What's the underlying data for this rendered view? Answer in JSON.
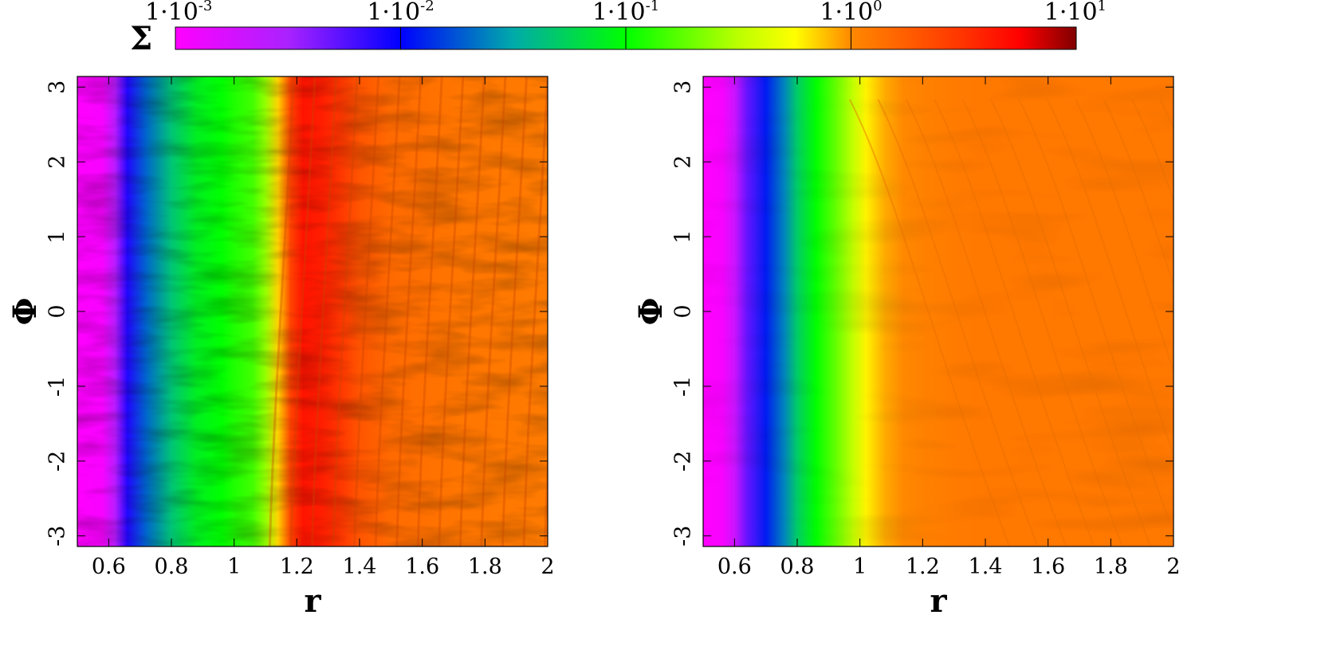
{
  "chart_data": [
    {
      "type": "heatmap",
      "title": "",
      "xlabel": "r",
      "ylabel": "Φ",
      "xlim": [
        0.5,
        2.0
      ],
      "ylim": [
        -3.14159,
        3.14159
      ],
      "x_ticks": [
        "0.6",
        "0.8",
        "1",
        "1.2",
        "1.4",
        "1.6",
        "1.8",
        "2"
      ],
      "x_tick_values": [
        0.6,
        0.8,
        1.0,
        1.2,
        1.4,
        1.6,
        1.8,
        2.0
      ],
      "y_ticks": [
        "-3",
        "-2",
        "-1",
        "0",
        "1",
        "2",
        "3"
      ],
      "y_tick_values": [
        -3,
        -2,
        -1,
        0,
        1,
        2,
        3
      ],
      "colormap_key": "Σ",
      "log_color_scale": true,
      "radial_profile": {
        "r": [
          0.5,
          0.58,
          0.62,
          0.66,
          0.72,
          0.8,
          0.88,
          0.96,
          1.0,
          1.06,
          1.1,
          1.14,
          1.18,
          1.22,
          1.28,
          1.34,
          1.4,
          1.5,
          1.7,
          2.0
        ],
        "sigma": [
          0.001,
          0.0011,
          0.0025,
          0.008,
          0.02,
          0.045,
          0.08,
          0.1,
          0.12,
          0.15,
          0.25,
          0.7,
          2.5,
          4.5,
          4.0,
          3.0,
          2.0,
          1.5,
          1.3,
          1.2
        ]
      }
    },
    {
      "type": "heatmap",
      "title": "",
      "xlabel": "r",
      "ylabel": "Φ",
      "xlim": [
        0.5,
        2.0
      ],
      "ylim": [
        -3.14159,
        3.14159
      ],
      "x_ticks": [
        "0.6",
        "0.8",
        "1",
        "1.2",
        "1.4",
        "1.6",
        "1.8",
        "2"
      ],
      "x_tick_values": [
        0.6,
        0.8,
        1.0,
        1.2,
        1.4,
        1.6,
        1.8,
        2.0
      ],
      "y_ticks": [
        "-3",
        "-2",
        "-1",
        "0",
        "1",
        "2",
        "3"
      ],
      "y_tick_values": [
        -3,
        -2,
        -1,
        0,
        1,
        2,
        3
      ],
      "colormap_key": "Σ",
      "log_color_scale": true,
      "radial_profile": {
        "r": [
          0.5,
          0.56,
          0.6,
          0.64,
          0.7,
          0.76,
          0.8,
          0.86,
          0.92,
          0.98,
          1.02,
          1.08,
          1.14,
          1.2,
          1.3,
          1.4,
          1.6,
          2.0
        ],
        "sigma": [
          0.001,
          0.0011,
          0.002,
          0.005,
          0.012,
          0.025,
          0.05,
          0.1,
          0.18,
          0.35,
          0.6,
          0.85,
          1.0,
          1.1,
          1.2,
          1.25,
          1.25,
          1.25
        ]
      }
    }
  ],
  "colorbar": {
    "symbol": "Σ",
    "range": [
      0.001,
      10
    ],
    "tick_values": [
      0.001,
      0.01,
      0.1,
      1,
      10
    ],
    "tick_labels": [
      {
        "base": "1·10",
        "exp": "-3"
      },
      {
        "base": "1·10",
        "exp": "-2"
      },
      {
        "base": "1·10",
        "exp": "-1"
      },
      {
        "base": "1·10",
        "exp": "0"
      },
      {
        "base": "1·10",
        "exp": "1"
      }
    ],
    "color_stops": [
      {
        "log10": -3.0,
        "color": "#ff00ff"
      },
      {
        "log10": -2.5,
        "color": "#aa22ff"
      },
      {
        "log10": -2.0,
        "color": "#0000ff"
      },
      {
        "log10": -1.5,
        "color": "#00aaaa"
      },
      {
        "log10": -1.0,
        "color": "#00ff00"
      },
      {
        "log10": -0.5,
        "color": "#bbff00"
      },
      {
        "log10": -0.25,
        "color": "#ffff00"
      },
      {
        "log10": 0.0,
        "color": "#ff8800"
      },
      {
        "log10": 0.5,
        "color": "#ff3300"
      },
      {
        "log10": 0.75,
        "color": "#ff0000"
      },
      {
        "log10": 1.0,
        "color": "#800000"
      }
    ]
  }
}
